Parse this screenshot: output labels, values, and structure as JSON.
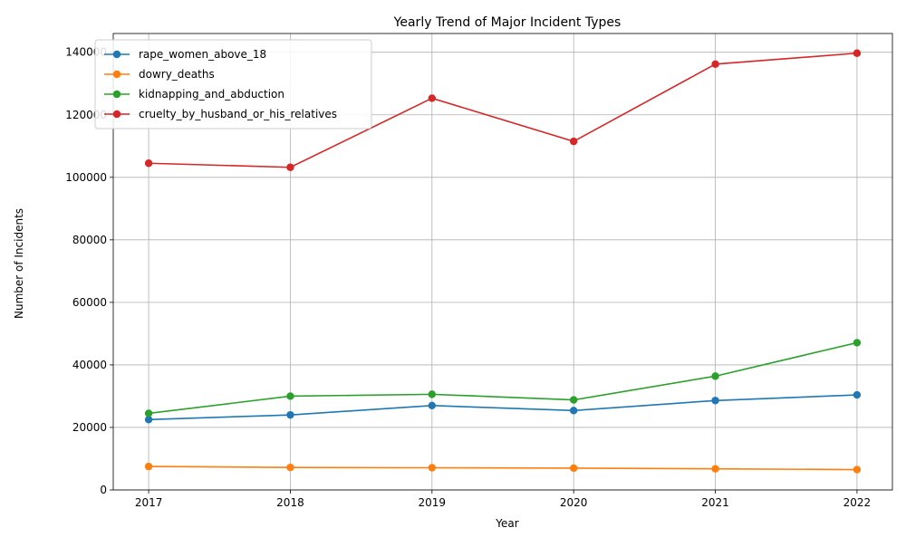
{
  "chart_data": {
    "type": "line",
    "title": "Yearly Trend of Major Incident Types",
    "xlabel": "Year",
    "ylabel": "Number of Incidents",
    "x": [
      2017,
      2018,
      2019,
      2020,
      2021,
      2022
    ],
    "xlim": [
      2016.75,
      2022.25
    ],
    "ylim": [
      0,
      146000
    ],
    "yticks": [
      0,
      20000,
      40000,
      60000,
      80000,
      100000,
      120000,
      140000
    ],
    "grid": true,
    "legend_position": "upper-left",
    "series": [
      {
        "name": "rape_women_above_18",
        "color": "#1f77b4",
        "values": [
          22500,
          24000,
          27000,
          25400,
          28600,
          30400
        ]
      },
      {
        "name": "dowry_deaths",
        "color": "#ff7f0e",
        "values": [
          7500,
          7200,
          7100,
          6970,
          6760,
          6500
        ]
      },
      {
        "name": "kidnapping_and_abduction",
        "color": "#2ca02c",
        "values": [
          24500,
          30000,
          30600,
          28800,
          36400,
          47100
        ]
      },
      {
        "name": "cruelty_by_husband_or_his_relatives",
        "color": "#d62728",
        "values": [
          104500,
          103200,
          125300,
          111500,
          136200,
          139700
        ]
      }
    ]
  }
}
